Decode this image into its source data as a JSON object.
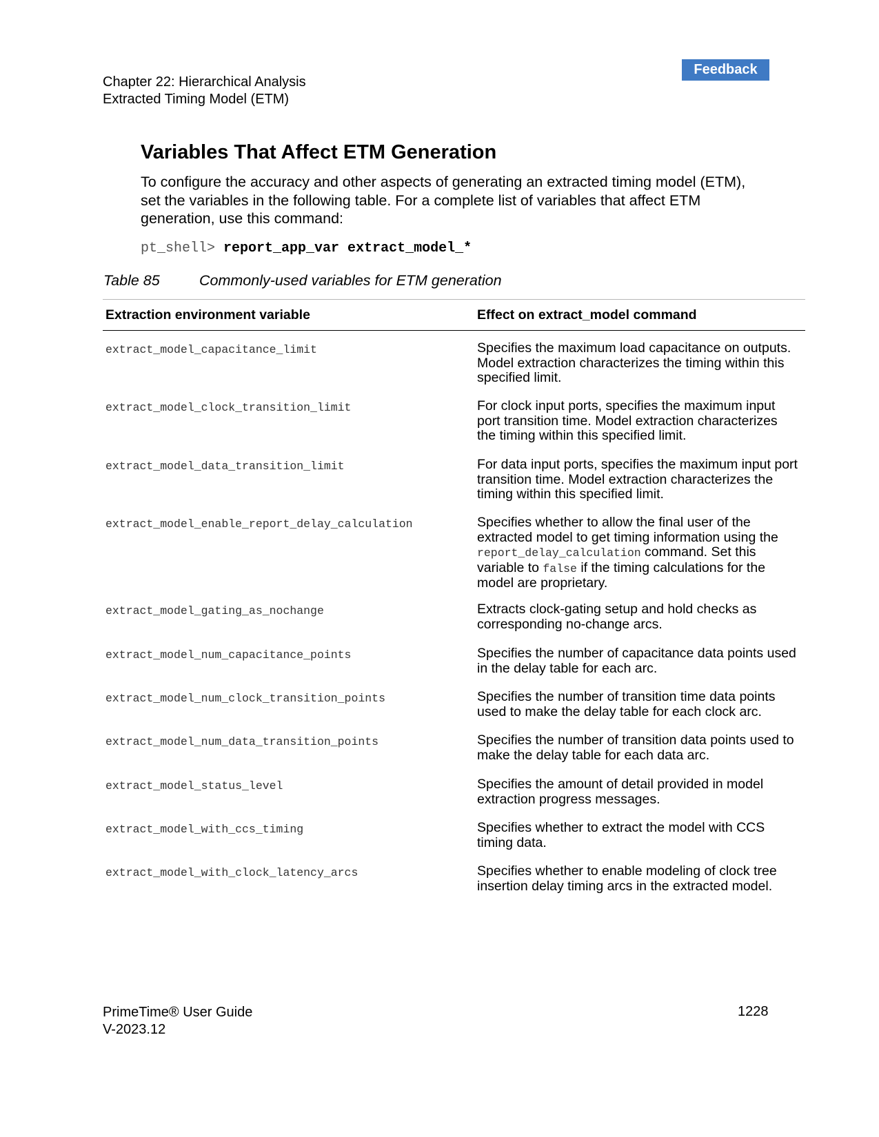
{
  "header": {
    "feedback_label": "Feedback",
    "chapter": "Chapter 22: Hierarchical Analysis",
    "section": "Extracted Timing Model (ETM)"
  },
  "main": {
    "title": "Variables That Affect ETM Generation",
    "intro": "To configure the accuracy and other aspects of generating an extracted timing model (ETM), set the variables in the following table. For a complete list of variables that affect ETM generation, use this command:",
    "command_prompt": "pt_shell> ",
    "command_text": "report_app_var extract_model_*"
  },
  "table": {
    "number": "Table 85",
    "caption": "Commonly-used variables for ETM generation",
    "headers": [
      "Extraction environment variable",
      "Effect on extract_model command"
    ],
    "rows": [
      {
        "variable": "extract_model_capacitance_limit",
        "effect": "Specifies the maximum load capacitance on outputs. Model extraction characterizes the timing within this specified limit."
      },
      {
        "variable": "extract_model_clock_transition_limit",
        "effect": "For clock input ports, specifies the maximum input port transition time. Model extraction characterizes the timing within this specified limit."
      },
      {
        "variable": "extract_model_data_transition_limit",
        "effect": "For data input ports, specifies the maximum input port transition time. Model extraction characterizes the timing within this specified limit."
      },
      {
        "variable": "extract_model_enable_report_delay_calculation",
        "effect_parts": [
          "Specifies whether to allow the final user of the extracted model to get timing information using the ",
          "report_delay_calculation",
          " command. Set this variable to ",
          "false",
          " if the timing calculations for the model are proprietary."
        ]
      },
      {
        "variable": "extract_model_gating_as_nochange",
        "effect": "Extracts clock-gating setup and hold checks as corresponding no-change arcs."
      },
      {
        "variable": "extract_model_num_capacitance_points",
        "effect": "Specifies the number of capacitance data points used in the delay table for each arc."
      },
      {
        "variable": "extract_model_num_clock_transition_points",
        "effect": "Specifies the number of transition time data points used to make the delay table for each clock arc."
      },
      {
        "variable": "extract_model_num_data_transition_points",
        "effect": "Specifies the number of transition data points used to make the delay table for each data arc."
      },
      {
        "variable": "extract_model_status_level",
        "effect": "Specifies the amount of detail provided in model extraction progress messages."
      },
      {
        "variable": "extract_model_with_ccs_timing",
        "effect": "Specifies whether to extract the model with CCS timing data."
      },
      {
        "variable": "extract_model_with_clock_latency_arcs",
        "effect": "Specifies whether to enable modeling of clock tree insertion delay timing arcs in the extracted model."
      }
    ]
  },
  "footer": {
    "guide": "PrimeTime® User Guide",
    "version": "V-2023.12",
    "page": "1228"
  }
}
